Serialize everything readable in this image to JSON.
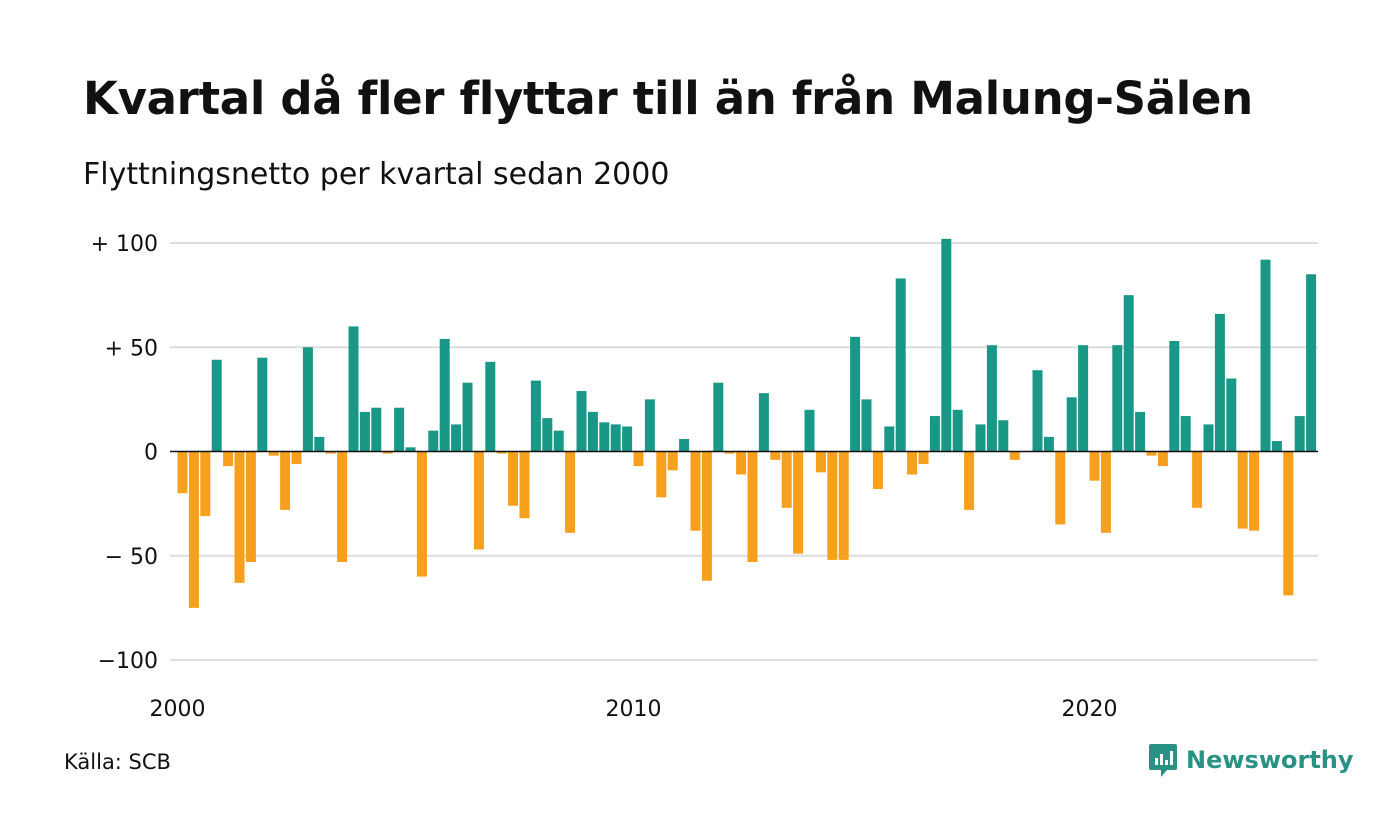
{
  "header": {
    "title": "Kvartal då fler flyttar till än från Malung-Sälen",
    "subtitle": "Flyttningsnetto per kvartal sedan 2000"
  },
  "footer": {
    "source": "Källa: SCB",
    "brand": "Newsworthy",
    "brand_icon": "newsworthy-logo-icon"
  },
  "colors": {
    "positive": "#1a9887",
    "negative": "#f6a01d",
    "gridline": "#dddddd",
    "zeroline": "#111111",
    "brand": "#2a9185"
  },
  "chart_data": {
    "type": "bar",
    "title": "Kvartal då fler flyttar till än från Malung-Sälen",
    "subtitle": "Flyttningsnetto per kvartal sedan 2000",
    "xlabel": "",
    "ylabel": "",
    "ylim": [
      -100,
      100
    ],
    "grid": true,
    "y_ticks": [
      {
        "value": 100,
        "label": "+ 100"
      },
      {
        "value": 50,
        "label": "+  50"
      },
      {
        "value": 0,
        "label": "0"
      },
      {
        "value": -50,
        "label": "− 50"
      },
      {
        "value": -100,
        "label": "−100"
      }
    ],
    "x_ticks": [
      {
        "year": 2000,
        "label": "2000"
      },
      {
        "year": 2010,
        "label": "2010"
      },
      {
        "year": 2020,
        "label": "2020"
      }
    ],
    "start_year": 2000,
    "start_quarter": 1,
    "values": [
      -20,
      -75,
      -31,
      44,
      -7,
      -63,
      -53,
      45,
      -2,
      -28,
      -6,
      50,
      7,
      -1,
      -53,
      60,
      19,
      21,
      -1,
      21,
      2,
      -60,
      10,
      54,
      13,
      33,
      -47,
      43,
      -1,
      -26,
      -32,
      34,
      16,
      10,
      -39,
      29,
      19,
      14,
      13,
      12,
      -7,
      25,
      -22,
      -9,
      6,
      -38,
      -62,
      33,
      -1,
      -11,
      -53,
      28,
      -4,
      -27,
      -49,
      20,
      -10,
      -52,
      -52,
      55,
      25,
      -18,
      12,
      83,
      -11,
      -6,
      17,
      102,
      20,
      -28,
      13,
      51,
      15,
      -4,
      0,
      39,
      7,
      -35,
      26,
      51,
      -14,
      -39,
      51,
      75,
      19,
      -2,
      -7,
      53,
      17,
      -27,
      13,
      66,
      35,
      -37,
      -38,
      92,
      5,
      -69,
      17,
      85
    ]
  }
}
